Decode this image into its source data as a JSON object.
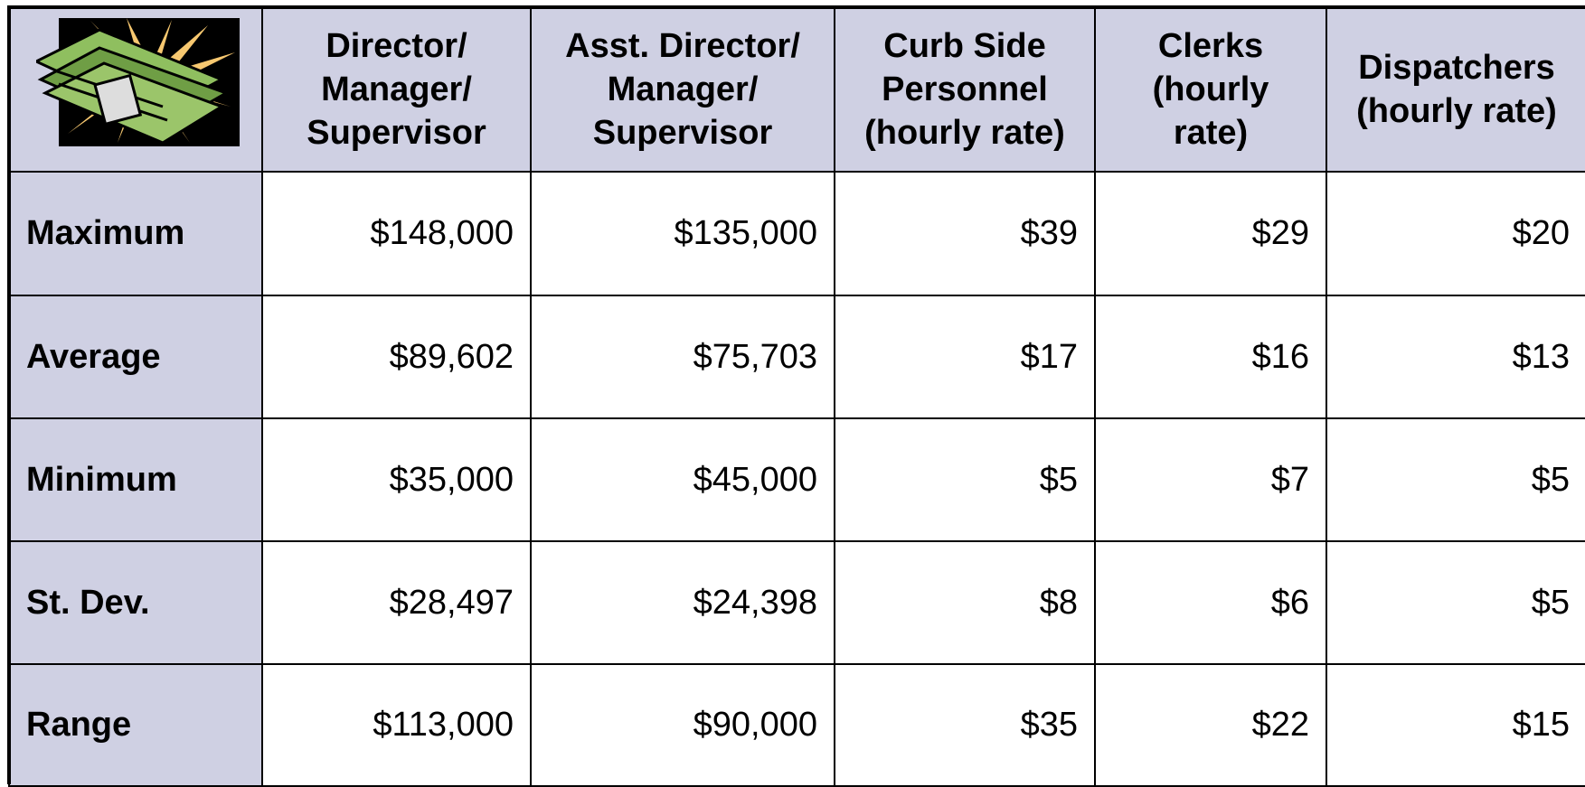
{
  "table": {
    "header": [
      "Director/\nManager/\nSupervisor",
      "Asst. Director/\nManager/\nSupervisor",
      "Curb Side\nPersonnel\n(hourly rate)",
      "Clerks\n(hourly\nrate)",
      "Dispatchers\n(hourly rate)"
    ],
    "rows": [
      {
        "label": "Maximum",
        "cells": [
          "$148,000",
          "$135,000",
          "$39",
          "$29",
          "$20"
        ]
      },
      {
        "label": "Average",
        "cells": [
          "$89,602",
          "$75,703",
          "$17",
          "$16",
          "$13"
        ]
      },
      {
        "label": "Minimum",
        "cells": [
          "$35,000",
          "$45,000",
          "$5",
          "$7",
          "$5"
        ]
      },
      {
        "label": "St. Dev.",
        "cells": [
          "$28,497",
          "$24,398",
          "$8",
          "$6",
          "$5"
        ]
      },
      {
        "label": "Range",
        "cells": [
          "$113,000",
          "$90,000",
          "$35",
          "$22",
          "$15"
        ]
      }
    ]
  }
}
